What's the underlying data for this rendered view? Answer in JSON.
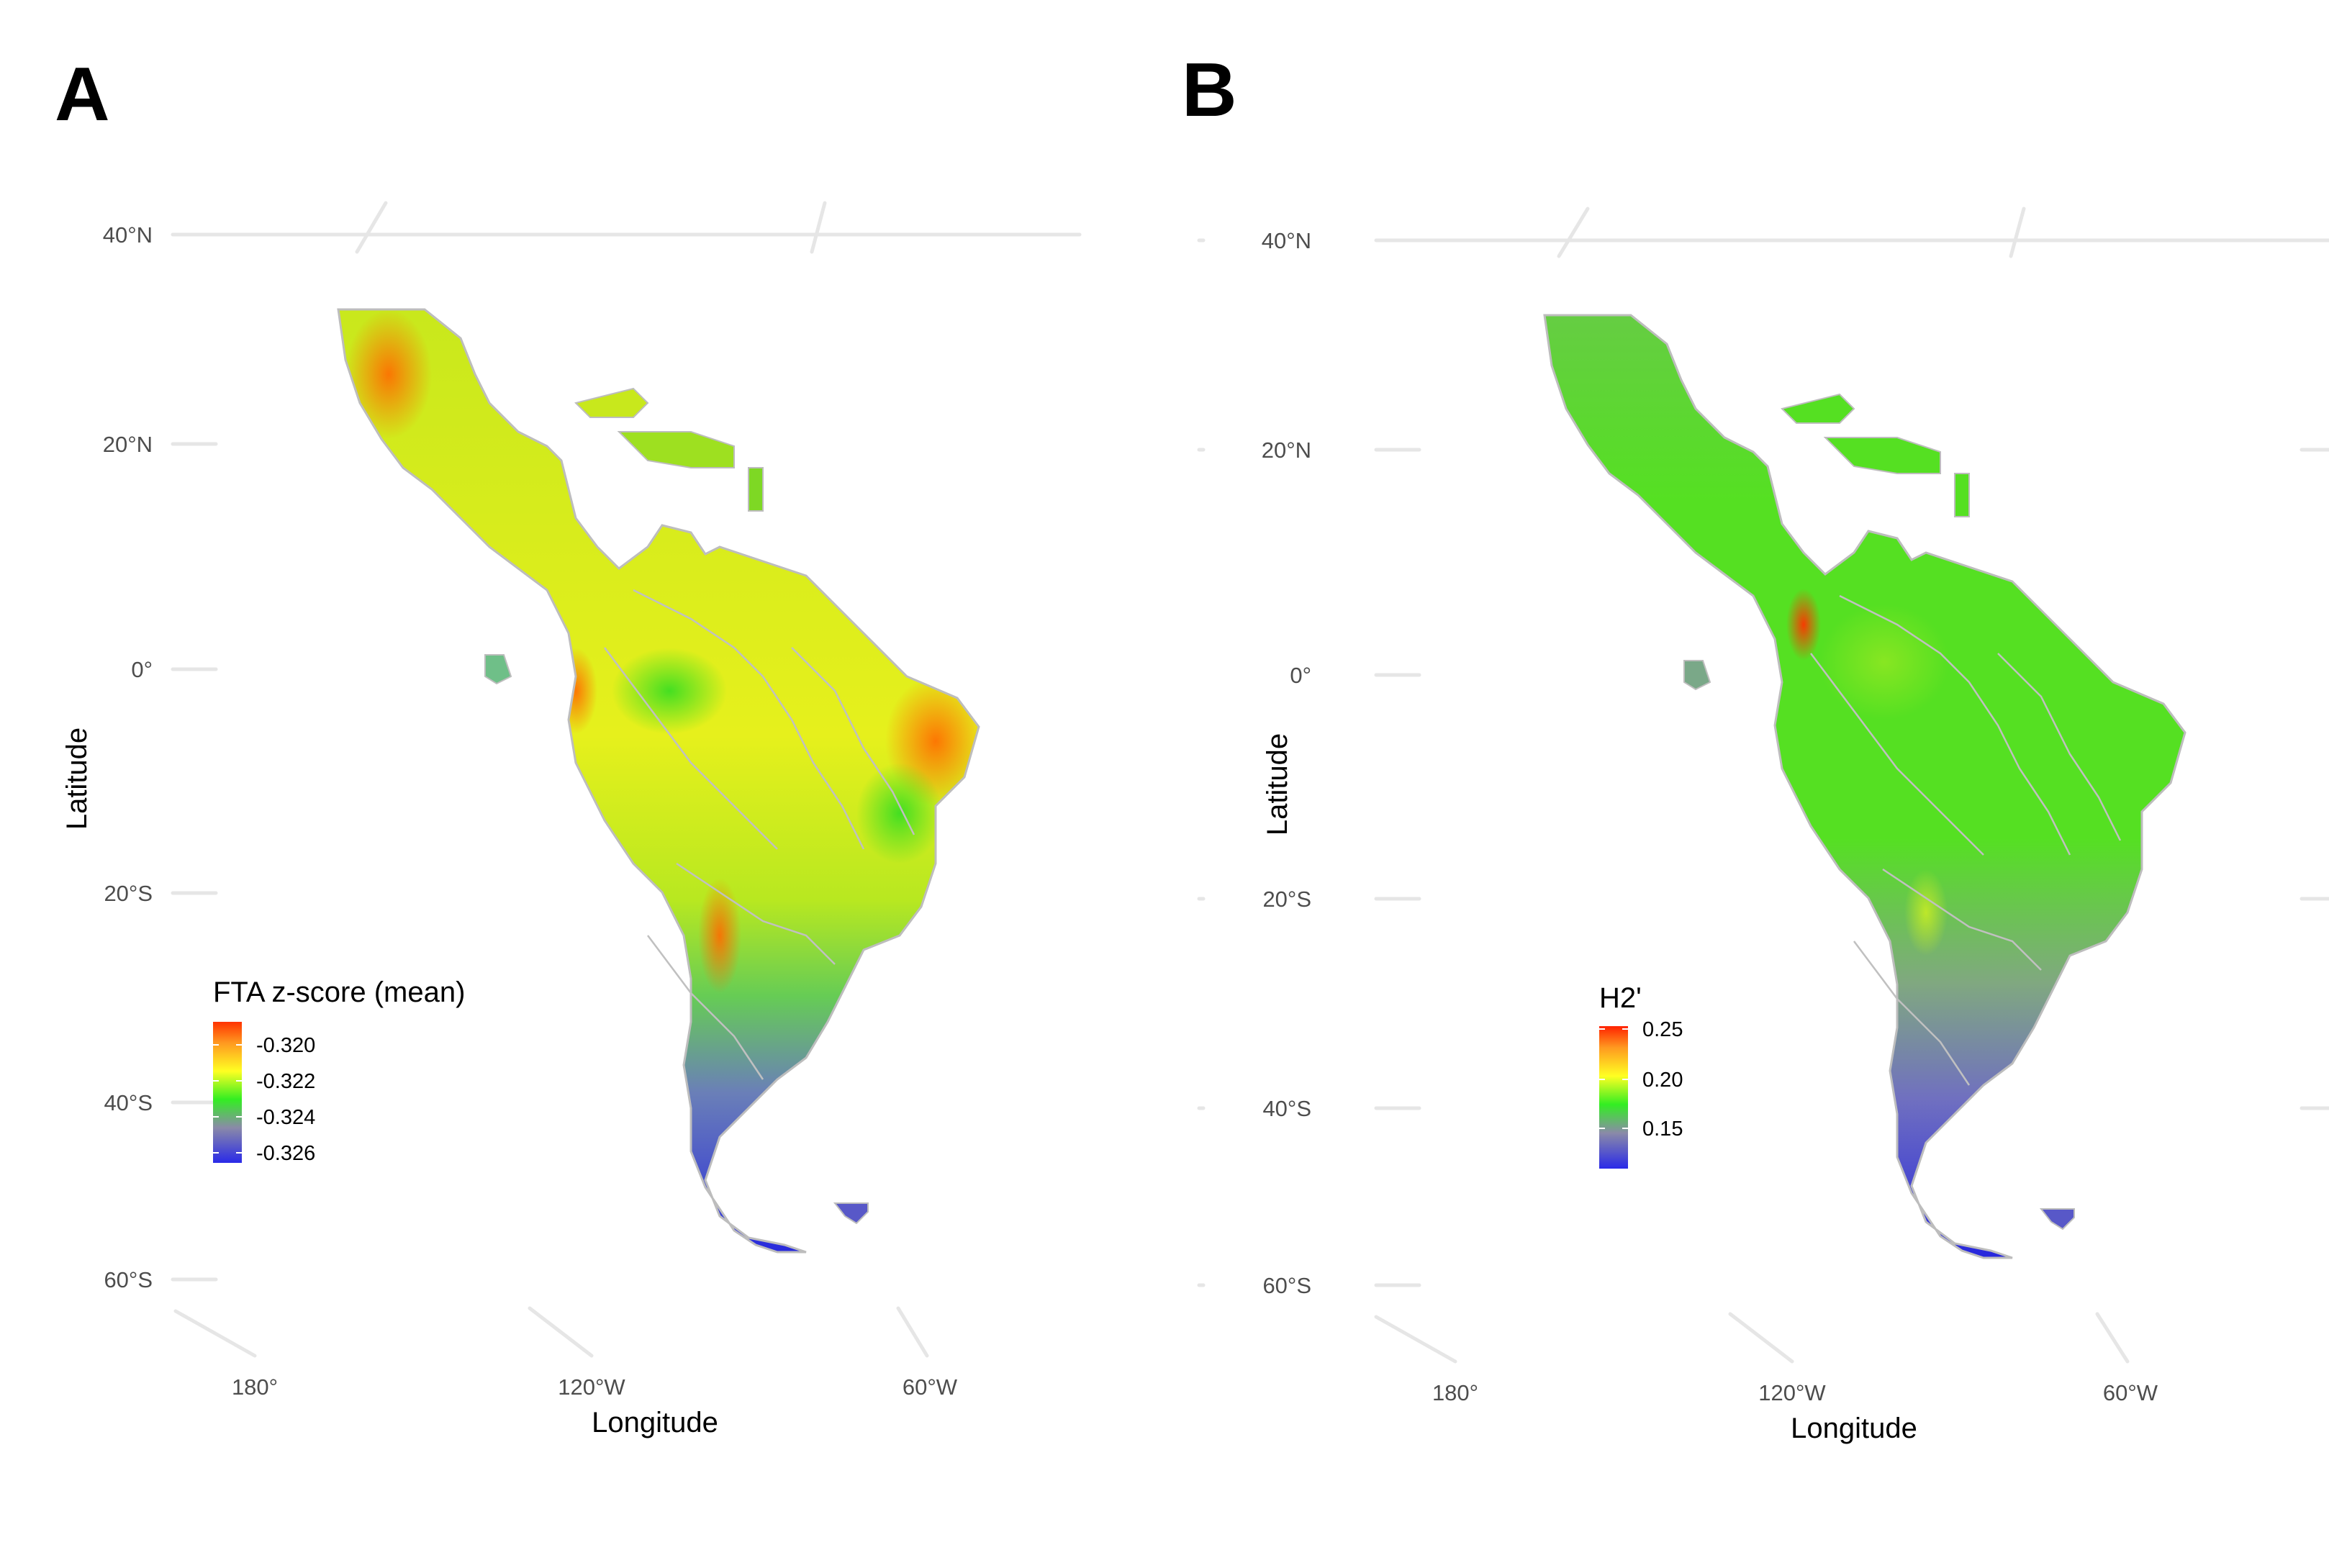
{
  "panels": [
    {
      "letter": "A",
      "legend_title": "FTA z-score (mean)",
      "legend_labels": [
        "-0.320",
        "-0.322",
        "-0.324",
        "-0.326"
      ],
      "lat_ticks": [
        "40°N",
        "20°N",
        "0°",
        "20°S",
        "40°S",
        "60°S"
      ],
      "lon_ticks": [
        "180°",
        "120°W",
        "60°W"
      ],
      "xlabel": "Longitude",
      "ylabel": "Latitude"
    },
    {
      "letter": "B",
      "legend_title": "H2'",
      "legend_labels": [
        "0.25",
        "0.20",
        "0.15"
      ],
      "lat_ticks": [
        "40°N",
        "20°N",
        "0°",
        "20°S",
        "40°S",
        "60°S"
      ],
      "lon_ticks": [
        "180°",
        "120°W",
        "60°W"
      ],
      "xlabel": "Longitude",
      "ylabel": "Latitude"
    }
  ],
  "colors": {
    "gradient": [
      "#3030e0",
      "#8080a0",
      "#33ee22",
      "#ffff22",
      "#ff9922",
      "#ff3300"
    ],
    "grid": "#e6e6e6",
    "borders": "#bdbdbd"
  }
}
